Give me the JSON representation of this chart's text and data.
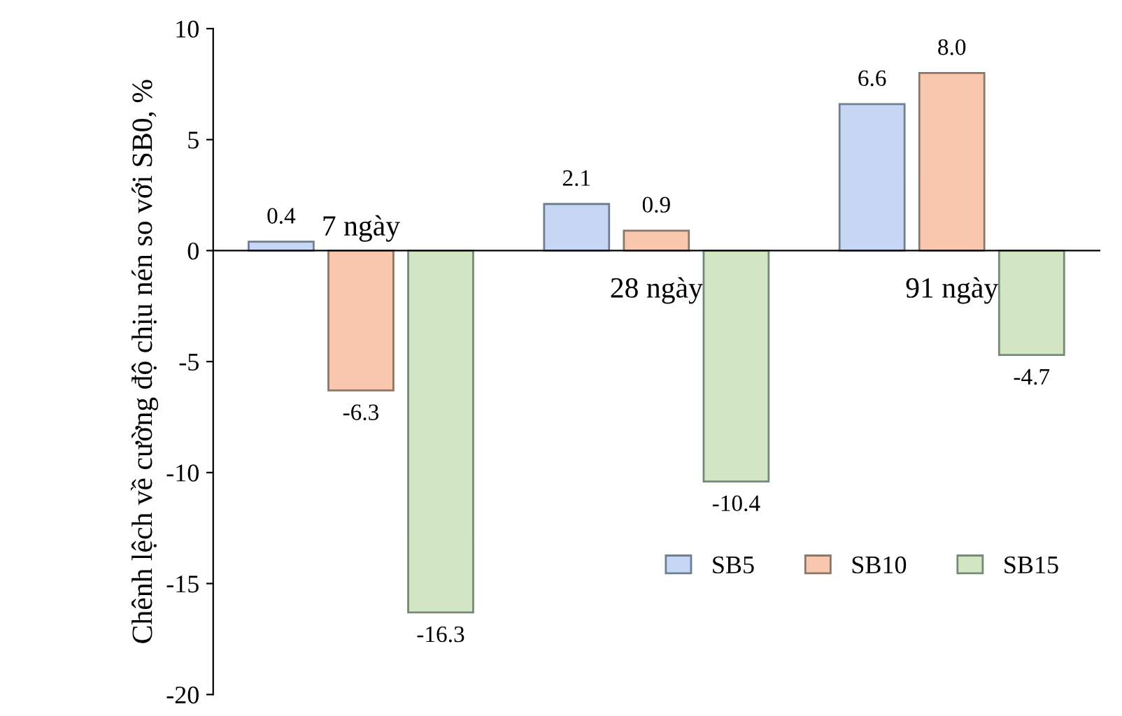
{
  "chart_data": {
    "type": "bar",
    "ylabel": "Chênh lệch về cường độ chịu nén so với SB0, %",
    "categories": [
      "7 ngày",
      "28 ngày",
      "91 ngày"
    ],
    "series": [
      {
        "name": "SB5",
        "color": "#c6d6f4",
        "values": [
          0.4,
          2.1,
          6.6
        ],
        "value_labels": [
          "0.4",
          "2.1",
          "6.6"
        ]
      },
      {
        "name": "SB10",
        "color": "#f9c7ae",
        "values": [
          -6.3,
          0.9,
          8.0
        ],
        "value_labels": [
          "-6.3",
          "0.9",
          "8.0"
        ]
      },
      {
        "name": "SB15",
        "color": "#d3e6c4",
        "values": [
          -16.3,
          -10.4,
          -4.7
        ],
        "value_labels": [
          "-16.3",
          "-10.4",
          "-4.7"
        ]
      }
    ],
    "ylim": [
      -20,
      10
    ],
    "yticks": [
      -20,
      -15,
      -10,
      -5,
      0,
      5,
      10
    ],
    "legend": "bottom right",
    "grid": false
  }
}
